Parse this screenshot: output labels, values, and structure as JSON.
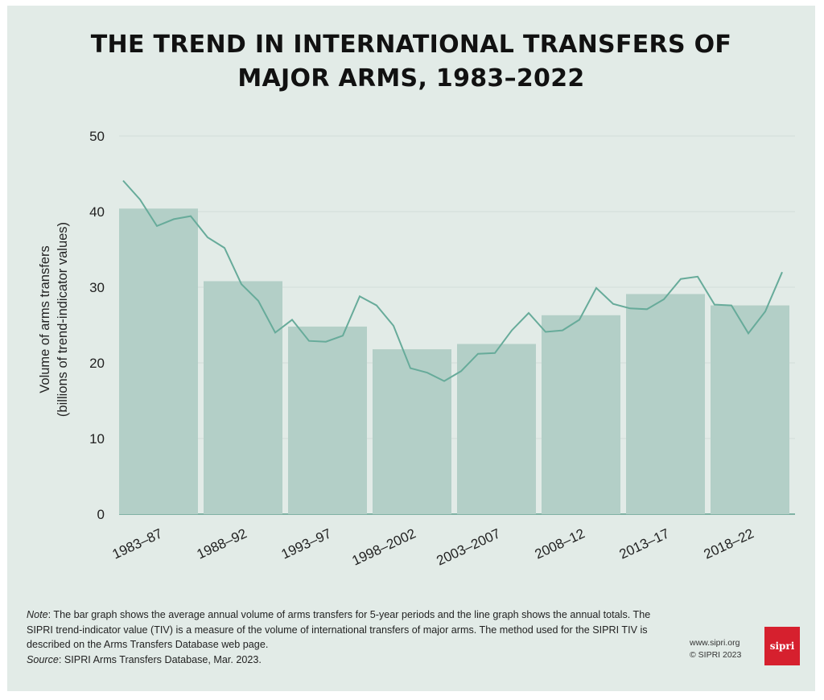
{
  "header": {
    "title_line1": "THE TREND IN INTERNATIONAL TRANSFERS OF",
    "title_line2": "MAJOR ARMS, 1983–2022"
  },
  "chart_data": {
    "type": "bar",
    "title": "THE TREND IN INTERNATIONAL TRANSFERS OF MAJOR ARMS, 1983–2022",
    "ylabel_line1": "Volume of arms transfers",
    "ylabel_line2": "(billions of trend-indicator values)",
    "xlabel": "",
    "ylim": [
      0,
      50
    ],
    "yticks": [
      0,
      10,
      20,
      30,
      40,
      50
    ],
    "grid": true,
    "categories": [
      "1983–87",
      "1988–92",
      "1993–97",
      "1998–2002",
      "2003–2007",
      "2008–12",
      "2013–17",
      "2018–22"
    ],
    "series": [
      {
        "name": "Average annual volume (5-year periods)",
        "type": "bar",
        "values": [
          40.4,
          30.8,
          24.8,
          21.8,
          22.5,
          26.3,
          29.1,
          27.6
        ]
      },
      {
        "name": "Annual totals",
        "type": "line",
        "x": [
          1983,
          1984,
          1985,
          1986,
          1987,
          1988,
          1989,
          1990,
          1991,
          1992,
          1993,
          1994,
          1995,
          1996,
          1997,
          1998,
          1999,
          2000,
          2001,
          2002,
          2003,
          2004,
          2005,
          2006,
          2007,
          2008,
          2009,
          2010,
          2011,
          2012,
          2013,
          2014,
          2015,
          2016,
          2017,
          2018,
          2019,
          2020,
          2021,
          2022
        ],
        "values": [
          44.1,
          41.6,
          38.1,
          39.0,
          39.4,
          36.6,
          35.2,
          30.4,
          28.2,
          24.0,
          25.7,
          22.9,
          22.8,
          23.6,
          28.8,
          27.6,
          24.9,
          19.3,
          18.7,
          17.6,
          18.9,
          21.2,
          21.3,
          24.3,
          26.6,
          24.1,
          24.3,
          25.7,
          29.9,
          27.8,
          27.2,
          27.1,
          28.4,
          31.1,
          31.4,
          27.7,
          27.6,
          23.9,
          26.8,
          32.0
        ]
      }
    ],
    "colors": {
      "bar": "#b3cfc7",
      "line": "#67ab9a",
      "grid": "#d3ddd9",
      "axis": "#5f9f8e"
    }
  },
  "footer": {
    "note_label": "Note",
    "note_text": ": The bar graph shows the average annual volume of arms transfers for 5-year periods and the line graph shows the annual totals. The SIPRI trend-indicator value (TIV) is a measure of the volume of international transfers of major arms. The method used for the SIPRI TIV is described on the Arms Transfers Database web page.",
    "source_label": "Source",
    "source_text": ": SIPRI Arms Transfers Database, Mar. 2023.",
    "site": "www.sipri.org",
    "copyright": "© SIPRI 2023",
    "logo_text": "sipri"
  }
}
